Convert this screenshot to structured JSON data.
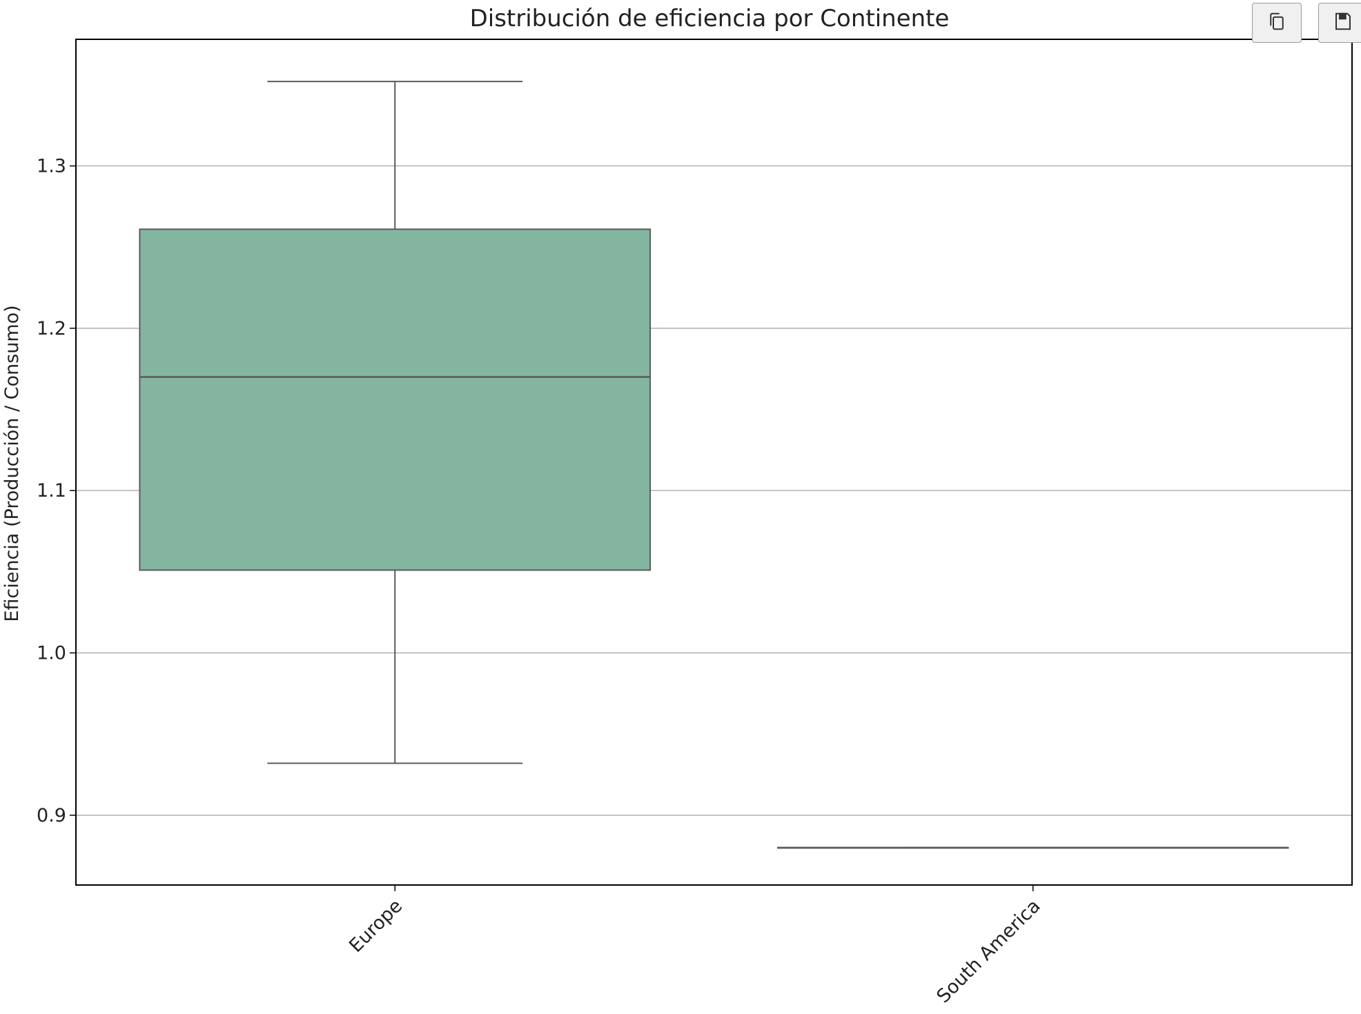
{
  "toolbar": {
    "copy_icon": "copy-icon",
    "save_icon": "save-icon"
  },
  "colors": {
    "box_fill": "#84b5a1",
    "line": "#5a5a5a",
    "grid": "#b0b0b0",
    "axis": "#000000"
  },
  "chart_data": {
    "type": "box",
    "title": "Distribución de eficiencia por Continente",
    "xlabel": "",
    "ylabel": "Eficiencia (Producción / Consumo)",
    "ylim": [
      0.857,
      1.378
    ],
    "yticks": [
      0.9,
      1.0,
      1.1,
      1.2,
      1.3
    ],
    "ytick_labels": [
      "0.9",
      "1.0",
      "1.1",
      "1.2",
      "1.3"
    ],
    "categories": [
      "Europe",
      "South America"
    ],
    "grid": "y",
    "boxes": [
      {
        "category": "Europe",
        "whisker_low": 0.932,
        "q1": 1.051,
        "median": 1.17,
        "q3": 1.261,
        "whisker_high": 1.352
      },
      {
        "category": "South America",
        "whisker_low": 0.88,
        "q1": 0.88,
        "median": 0.88,
        "q3": 0.88,
        "whisker_high": 0.88
      }
    ]
  }
}
